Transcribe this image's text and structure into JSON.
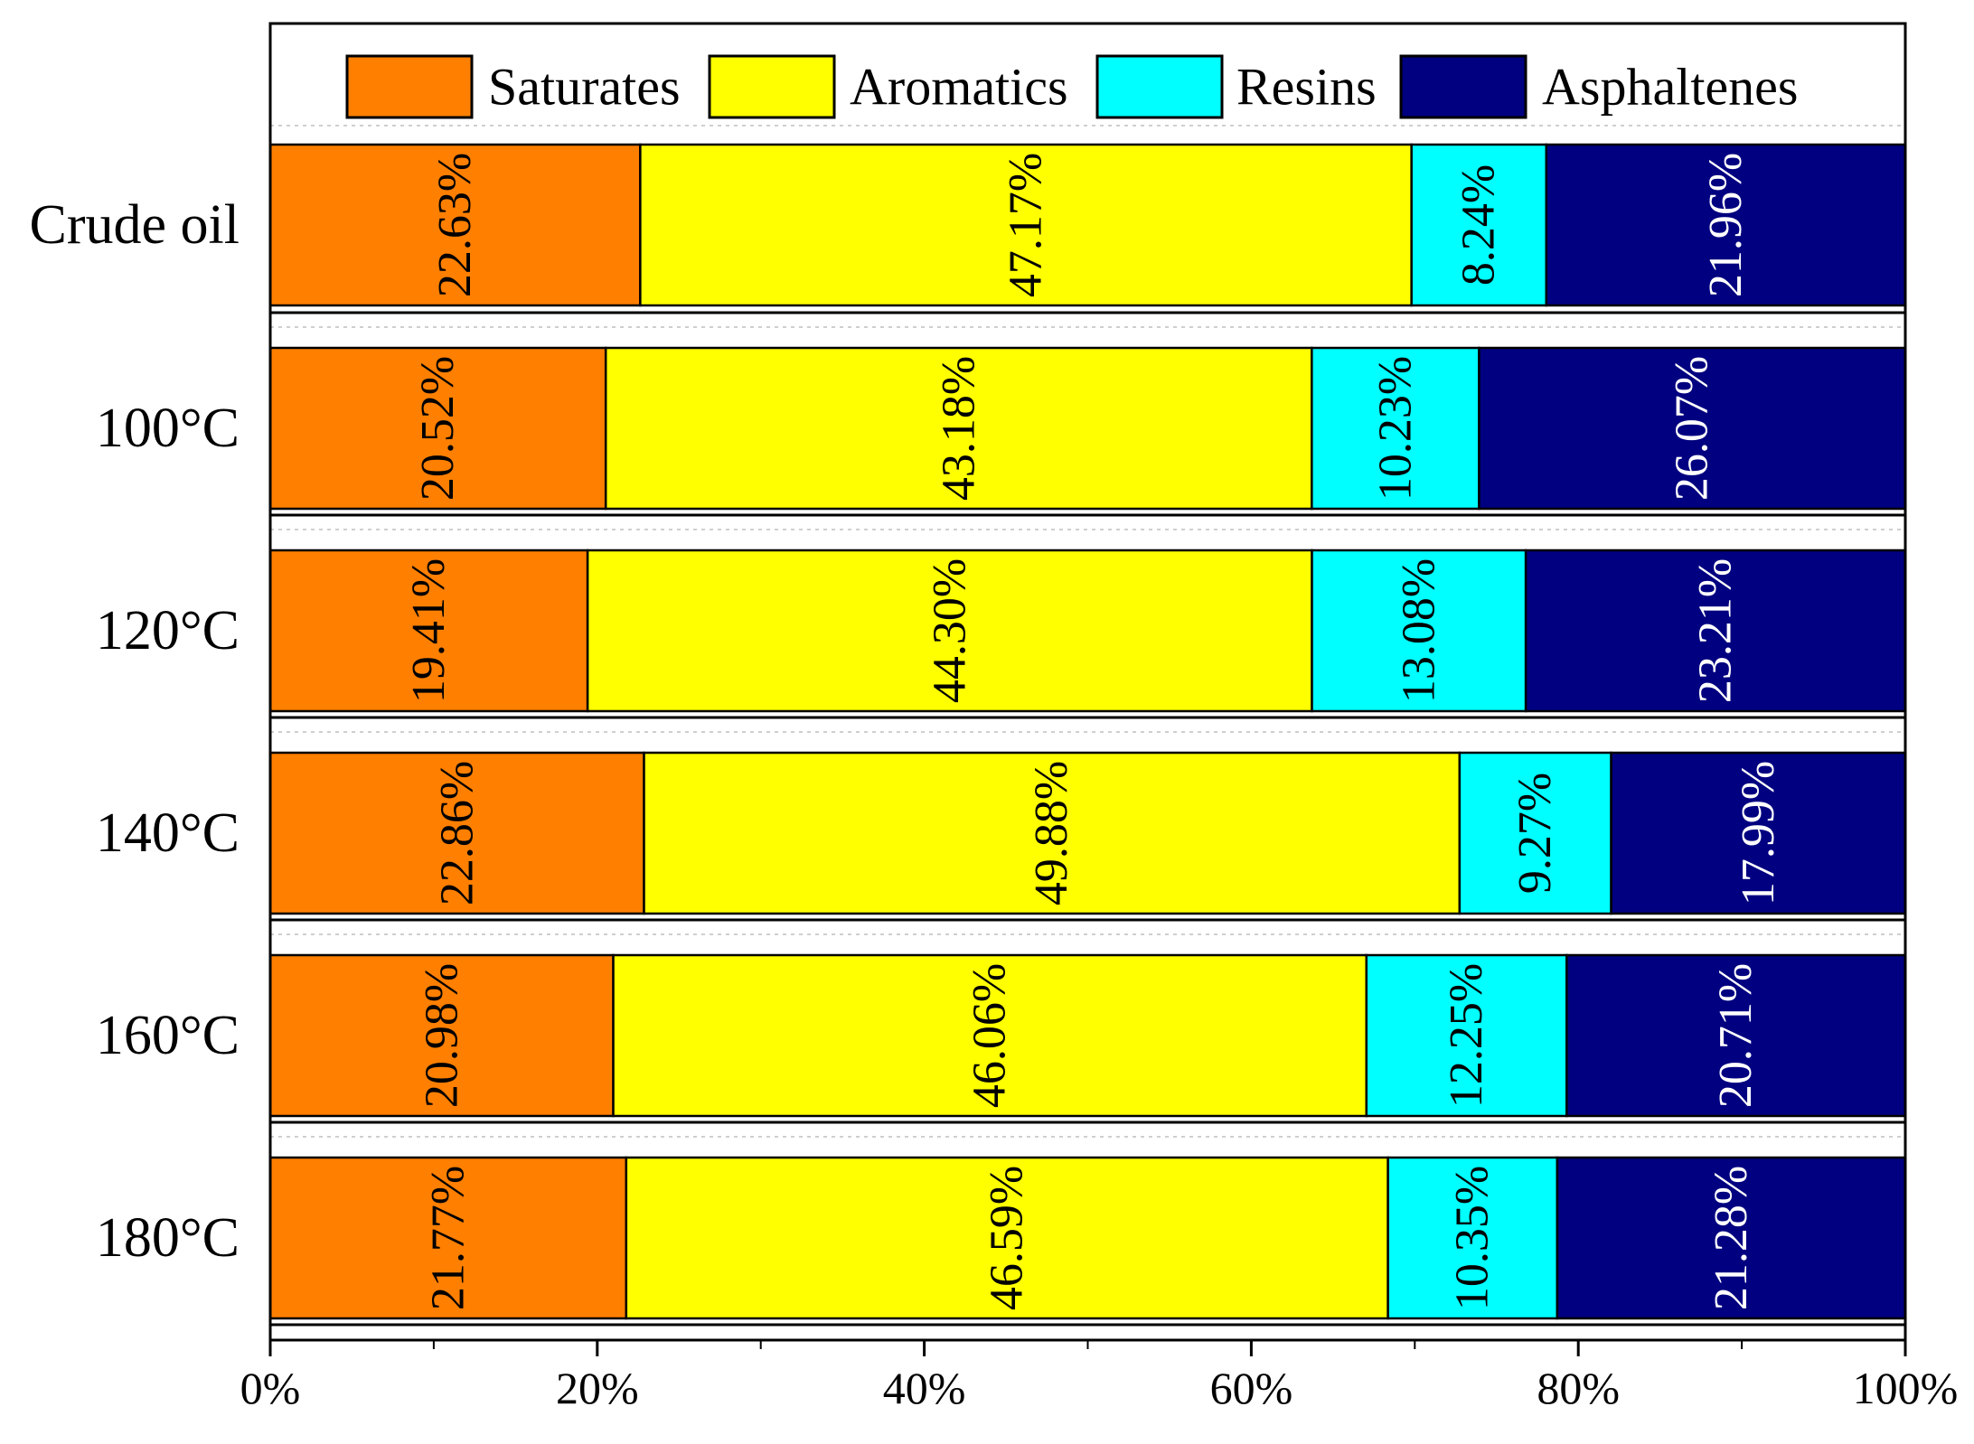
{
  "chart_data": {
    "type": "bar",
    "orientation": "horizontal",
    "stacked": true,
    "title": "",
    "xlabel": "",
    "ylabel": "",
    "xlim": [
      0,
      100
    ],
    "x_ticks": [
      "0%",
      "20%",
      "40%",
      "60%",
      "80%",
      "100%"
    ],
    "legend_position": "top",
    "categories": [
      "Crude oil",
      "100°C",
      "120°C",
      "140°C",
      "160°C",
      "180°C"
    ],
    "series": [
      {
        "name": "Saturates",
        "color": "#ff7f00",
        "label_color": "#000000",
        "values": [
          22.63,
          20.52,
          19.41,
          22.86,
          20.98,
          21.77
        ],
        "labels": [
          "22.63%",
          "20.52%",
          "19.41%",
          "22.86%",
          "20.98%",
          "21.77%"
        ]
      },
      {
        "name": "Aromatics",
        "color": "#ffff00",
        "label_color": "#000000",
        "values": [
          47.17,
          43.18,
          44.3,
          49.88,
          46.06,
          46.59
        ],
        "labels": [
          "47.17%",
          "43.18%",
          "44.30%",
          "49.88%",
          "46.06%",
          "46.59%"
        ]
      },
      {
        "name": "Resins",
        "color": "#00ffff",
        "label_color": "#000000",
        "values": [
          8.24,
          10.23,
          13.08,
          9.27,
          12.25,
          10.35
        ],
        "labels": [
          "8.24%",
          "10.23%",
          "13.08%",
          "9.27%",
          "12.25%",
          "10.35%"
        ]
      },
      {
        "name": "Asphaltenes",
        "color": "#000080",
        "label_color": "#ffffff",
        "values": [
          21.96,
          26.07,
          23.21,
          17.99,
          20.71,
          21.28
        ],
        "labels": [
          "21.96%",
          "26.07%",
          "23.21%",
          "17.99%",
          "20.71%",
          "21.28%"
        ]
      }
    ]
  }
}
